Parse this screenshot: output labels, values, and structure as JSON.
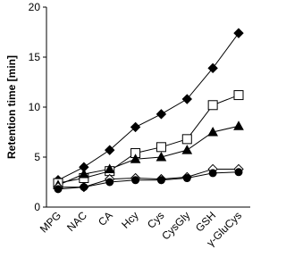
{
  "chart_data": {
    "type": "line",
    "y_label": "Retention time [min]",
    "categories": [
      "MPG",
      "NAC",
      "CA",
      "Hcy",
      "Cys",
      "CysGly",
      "GSH",
      "γ-GluCys"
    ],
    "ylim": [
      0,
      20
    ],
    "yticks": [
      0,
      5,
      10,
      15,
      20
    ],
    "series": [
      {
        "marker": "diamond",
        "color": "#000000",
        "filled": true,
        "values": [
          2.7,
          4.0,
          5.7,
          8.0,
          9.3,
          10.8,
          13.9,
          17.4
        ]
      },
      {
        "marker": "square",
        "color": "#000000",
        "filled": false,
        "values": [
          2.4,
          2.9,
          3.6,
          5.4,
          6.0,
          6.8,
          10.2,
          11.2
        ]
      },
      {
        "marker": "triangle",
        "color": "#000000",
        "filled": true,
        "values": [
          2.2,
          3.3,
          3.8,
          4.8,
          5.0,
          5.7,
          7.5,
          8.1
        ]
      },
      {
        "marker": "diamond",
        "color": "#000000",
        "filled": false,
        "values": [
          2.0,
          2.0,
          2.8,
          2.9,
          2.8,
          3.0,
          3.8,
          3.8
        ]
      },
      {
        "marker": "circle",
        "color": "#000000",
        "filled": true,
        "values": [
          1.8,
          2.0,
          2.5,
          2.7,
          2.7,
          2.9,
          3.4,
          3.5
        ]
      }
    ]
  }
}
